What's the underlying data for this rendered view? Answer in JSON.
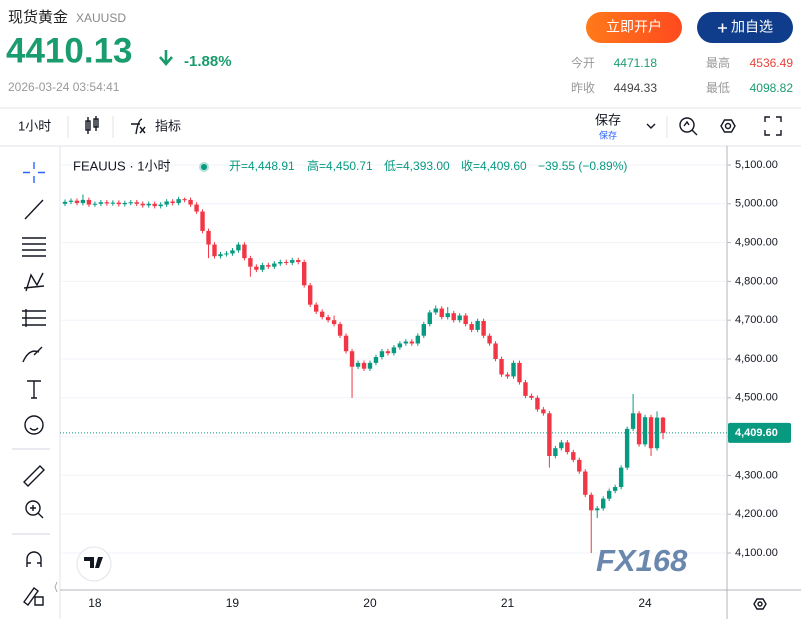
{
  "header": {
    "title": "现货黄金",
    "symbol": "XAUUSD",
    "price": "4410.13",
    "change": "-1.88%",
    "time": "2026-03-24 03:54:41",
    "buttons": [
      "立即开户",
      "加自选"
    ],
    "stats": [
      {
        "label": "今开",
        "value": "4471.18"
      },
      {
        "label": "最高",
        "value": "4536.49"
      },
      {
        "label": "昨收",
        "value": "4494.33"
      },
      {
        "label": "最低",
        "value": "4098.82"
      }
    ]
  },
  "toolbar": {
    "interval": "1小时",
    "indicators": "指标",
    "save": "保存",
    "save_sub": "保存"
  },
  "chart_data": {
    "type": "candlestick",
    "title": "FEAUUS · 1小时",
    "legend": [
      "开=4,448.91",
      "高=4,450.71",
      "低=4,393.00",
      "收=4,409.60",
      "−39.55 (−0.89%)"
    ],
    "watermark": "FX168",
    "up_color": "#089981",
    "down_color": "#f23645",
    "grid": true,
    "categories": [
      null,
      null,
      null,
      null,
      null,
      "18",
      null,
      null,
      null,
      null,
      null,
      null,
      null,
      null,
      null,
      null,
      null,
      null,
      null,
      null,
      null,
      null,
      null,
      null,
      null,
      null,
      null,
      null,
      "19",
      null,
      null,
      null,
      null,
      null,
      null,
      null,
      null,
      null,
      null,
      null,
      null,
      null,
      null,
      null,
      null,
      null,
      null,
      null,
      null,
      null,
      null,
      "20",
      null,
      null,
      null,
      null,
      null,
      null,
      null,
      null,
      null,
      null,
      null,
      null,
      null,
      null,
      null,
      null,
      null,
      null,
      null,
      null,
      null,
      null,
      "21",
      null,
      null,
      null,
      null,
      null,
      null,
      null,
      null,
      null,
      null,
      null,
      null,
      null,
      null,
      null,
      null,
      null,
      null,
      null,
      null,
      null,
      null,
      "24",
      null,
      null,
      null
    ],
    "open": [
      5000,
      5005,
      5008,
      5002,
      5010,
      4998,
      5000,
      5004,
      5001,
      5003,
      4999,
      5002,
      5004,
      5000,
      4996,
      5000,
      4994,
      4998,
      5006,
      5002,
      5012,
      5010,
      4998,
      4980,
      4930,
      4895,
      4865,
      4870,
      4872,
      4880,
      4895,
      4860,
      4838,
      4830,
      4842,
      4838,
      4846,
      4850,
      4848,
      4855,
      4850,
      4790,
      4740,
      4722,
      4708,
      4700,
      4690,
      4660,
      4620,
      4580,
      4590,
      4575,
      4590,
      4605,
      4620,
      4615,
      4630,
      4640,
      4645,
      4640,
      4660,
      4690,
      4720,
      4730,
      4708,
      4718,
      4700,
      4712,
      4690,
      4675,
      4698,
      4660,
      4640,
      4600,
      4560,
      4555,
      4590,
      4540,
      4505,
      4500,
      4470,
      4460,
      4350,
      4370,
      4385,
      4360,
      4340,
      4310,
      4250,
      4210,
      4215,
      4240,
      4260,
      4270,
      4320,
      4420,
      4460,
      4380,
      4450,
      4370,
      4448.91
    ],
    "high": [
      5011,
      5014,
      5014,
      5024,
      5016,
      5006,
      5010,
      5010,
      5009,
      5009,
      5008,
      5010,
      5010,
      5006,
      5006,
      5006,
      5004,
      5012,
      5012,
      5018,
      5016,
      5016,
      5004,
      4986,
      4936,
      4901,
      4876,
      4878,
      4886,
      4901,
      4901,
      4866,
      4844,
      4848,
      4848,
      4852,
      4856,
      4856,
      4861,
      4861,
      4856,
      4796,
      4746,
      4728,
      4714,
      4712,
      4696,
      4666,
      4626,
      4596,
      4596,
      4596,
      4611,
      4626,
      4626,
      4636,
      4646,
      4651,
      4651,
      4666,
      4696,
      4726,
      4738,
      4736,
      4734,
      4724,
      4718,
      4718,
      4696,
      4704,
      4704,
      4666,
      4646,
      4606,
      4566,
      4596,
      4596,
      4546,
      4511,
      4506,
      4476,
      4466,
      4376,
      4391,
      4391,
      4366,
      4346,
      4316,
      4256,
      4221,
      4246,
      4266,
      4276,
      4326,
      4426,
      4510,
      4466,
      4456,
      4456,
      4465,
      4450.71
    ],
    "low": [
      4994,
      4999,
      4996,
      4996,
      4992,
      4992,
      4994,
      4995,
      4995,
      4993,
      4993,
      4996,
      4994,
      4990,
      4990,
      4988,
      4988,
      4992,
      4996,
      4996,
      5004,
      4992,
      4974,
      4924,
      4860,
      4859,
      4859,
      4864,
      4866,
      4874,
      4854,
      4812,
      4824,
      4824,
      4832,
      4832,
      4840,
      4842,
      4842,
      4844,
      4784,
      4734,
      4716,
      4702,
      4694,
      4684,
      4654,
      4614,
      4500,
      4574,
      4569,
      4569,
      4584,
      4599,
      4609,
      4609,
      4624,
      4634,
      4634,
      4634,
      4654,
      4684,
      4714,
      4702,
      4702,
      4694,
      4694,
      4684,
      4669,
      4669,
      4654,
      4634,
      4594,
      4554,
      4549,
      4549,
      4534,
      4499,
      4494,
      4464,
      4454,
      4320,
      4344,
      4364,
      4354,
      4334,
      4304,
      4244,
      4100,
      4190,
      4209,
      4234,
      4254,
      4264,
      4314,
      4414,
      4374,
      4374,
      4350,
      4364,
      4393
    ],
    "close": [
      5005,
      5008,
      5002,
      5010,
      4998,
      5000,
      5004,
      5001,
      5003,
      4999,
      5002,
      5004,
      5000,
      4996,
      5000,
      4994,
      4998,
      5006,
      5002,
      5012,
      5010,
      4998,
      4980,
      4930,
      4895,
      4865,
      4870,
      4872,
      4880,
      4895,
      4860,
      4838,
      4830,
      4842,
      4838,
      4846,
      4850,
      4848,
      4855,
      4850,
      4790,
      4740,
      4722,
      4708,
      4700,
      4690,
      4660,
      4620,
      4580,
      4590,
      4575,
      4590,
      4605,
      4620,
      4615,
      4630,
      4640,
      4645,
      4640,
      4660,
      4690,
      4720,
      4730,
      4708,
      4718,
      4700,
      4712,
      4690,
      4675,
      4698,
      4660,
      4640,
      4600,
      4560,
      4555,
      4590,
      4540,
      4505,
      4500,
      4470,
      4460,
      4350,
      4370,
      4385,
      4360,
      4340,
      4310,
      4250,
      4210,
      4215,
      4240,
      4260,
      4270,
      4320,
      4420,
      4460,
      4380,
      4450,
      4370,
      4448.91,
      4409.6
    ],
    "current_price": {
      "value": 4409.6,
      "label": "4,409.60"
    },
    "ylim": [
      4004.6,
      5143.8
    ],
    "yticks": [
      {
        "value": 4100,
        "label": "4,100.00"
      },
      {
        "value": 4200,
        "label": "4,200.00"
      },
      {
        "value": 4300,
        "label": "4,300.00"
      },
      {
        "value": 4400,
        "label": "4,400.00"
      },
      {
        "value": 4500,
        "label": "4,500.00"
      },
      {
        "value": 4600,
        "label": "4,600.00"
      },
      {
        "value": 4700,
        "label": "4,700.00"
      },
      {
        "value": 4800,
        "label": "4,800.00"
      },
      {
        "value": 4900,
        "label": "4,900.00"
      },
      {
        "value": 5000,
        "label": "5,000.00"
      },
      {
        "value": 5100,
        "label": "5,100.00"
      }
    ]
  }
}
